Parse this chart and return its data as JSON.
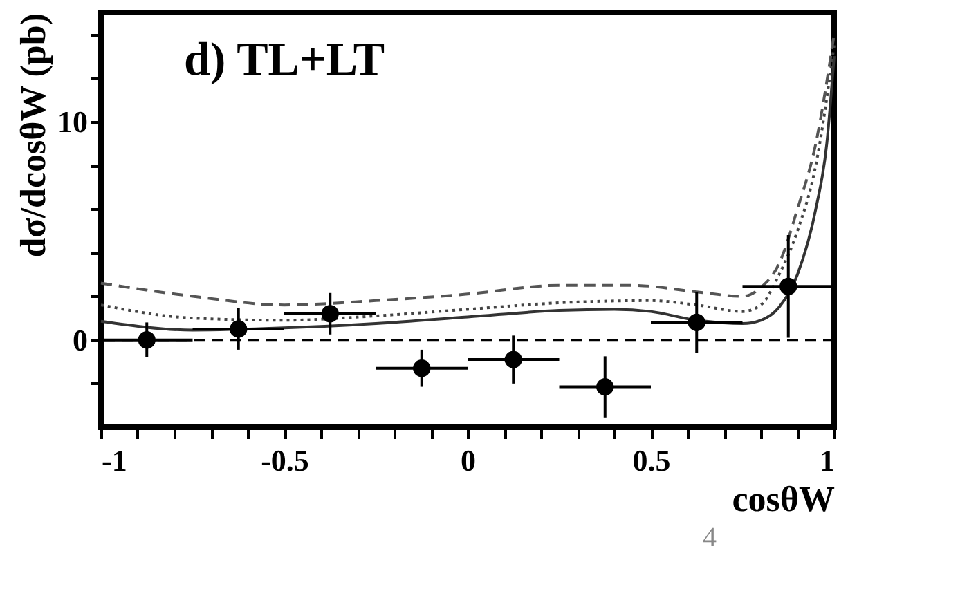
{
  "chart_data": {
    "type": "scatter",
    "xlabel": "cosθW",
    "ylabel": "dσ/dcosθW (pb)",
    "annotations": [
      "d) TL+LT",
      "4"
    ],
    "xlim": [
      -1,
      1
    ],
    "ylim": [
      -4,
      15
    ],
    "xticks": [
      -1,
      {
        "value": -0.9,
        "label": null
      },
      {
        "value": -0.8,
        "label": null
      },
      {
        "value": -0.7,
        "label": null
      },
      {
        "value": -0.6,
        "label": null
      },
      -0.5,
      {
        "value": -0.4,
        "label": null
      },
      {
        "value": -0.3,
        "label": null
      },
      {
        "value": -0.2,
        "label": null
      },
      {
        "value": -0.1,
        "label": null
      },
      0,
      {
        "value": 0.1,
        "label": null
      },
      {
        "value": 0.2,
        "label": null
      },
      {
        "value": 0.3,
        "label": null
      },
      {
        "value": 0.4,
        "label": null
      },
      0.5,
      {
        "value": 0.6,
        "label": null
      },
      {
        "value": 0.7,
        "label": null
      },
      {
        "value": 0.8,
        "label": null
      },
      {
        "value": 0.9,
        "label": null
      },
      1
    ],
    "yticks": [
      {
        "value": -2,
        "label": null
      },
      0,
      {
        "value": 2,
        "label": null
      },
      {
        "value": 4,
        "label": null
      },
      {
        "value": 6,
        "label": null
      },
      {
        "value": 8,
        "label": null
      },
      10,
      {
        "value": 12,
        "label": null
      },
      {
        "value": 14,
        "label": null
      }
    ],
    "ref_lines": [
      {
        "axis": "y",
        "value": 0,
        "color": "#000000",
        "line_style": "dashed"
      }
    ],
    "series": [
      {
        "type": "line",
        "color": "#333333",
        "line_style": "solid",
        "x": [
          -1,
          -0.75,
          -0.5,
          -0.25,
          0,
          0.25,
          0.4,
          0.5,
          0.625,
          0.75,
          0.8,
          0.85,
          0.9,
          0.95,
          0.98,
          1.0
        ],
        "values": [
          0.85,
          0.45,
          0.55,
          0.75,
          1.05,
          1.35,
          1.4,
          1.3,
          0.9,
          0.75,
          0.9,
          1.5,
          3,
          6,
          9,
          13
        ]
      },
      {
        "type": "line",
        "color": "#444444",
        "line_style": "dotted",
        "x": [
          -1,
          -0.75,
          -0.5,
          -0.25,
          0,
          0.25,
          0.5,
          0.625,
          0.75,
          0.8,
          0.85,
          0.9,
          0.95,
          1.0
        ],
        "values": [
          1.6,
          1.0,
          0.9,
          1.1,
          1.4,
          1.7,
          1.8,
          1.6,
          1.3,
          1.6,
          3,
          5,
          8,
          13.5
        ]
      },
      {
        "type": "line",
        "color": "#555555",
        "line_style": "dashed",
        "x": [
          -1,
          -0.75,
          -0.5,
          -0.25,
          0,
          0.25,
          0.45,
          0.625,
          0.75,
          0.8,
          0.85,
          0.9,
          0.95,
          1.0
        ],
        "values": [
          2.6,
          2.0,
          1.6,
          1.8,
          2.1,
          2.5,
          2.5,
          2.2,
          2.0,
          2.4,
          3.5,
          6,
          9,
          14
        ]
      },
      {
        "color": "#000000",
        "marker": "circle",
        "x": [
          -0.875,
          -0.625,
          -0.375,
          -0.125,
          0.125,
          0.375,
          0.625,
          0.875
        ],
        "values": [
          0.0,
          0.5,
          1.2,
          -1.3,
          -0.9,
          -2.15,
          0.8,
          2.45
        ],
        "errors": [
          0.8,
          0.95,
          0.95,
          0.85,
          1.1,
          1.4,
          1.4,
          2.35
        ],
        "xerrors": [
          0.125,
          0.125,
          0.125,
          0.125,
          0.125,
          0.125,
          0.125,
          0.125
        ]
      }
    ]
  }
}
